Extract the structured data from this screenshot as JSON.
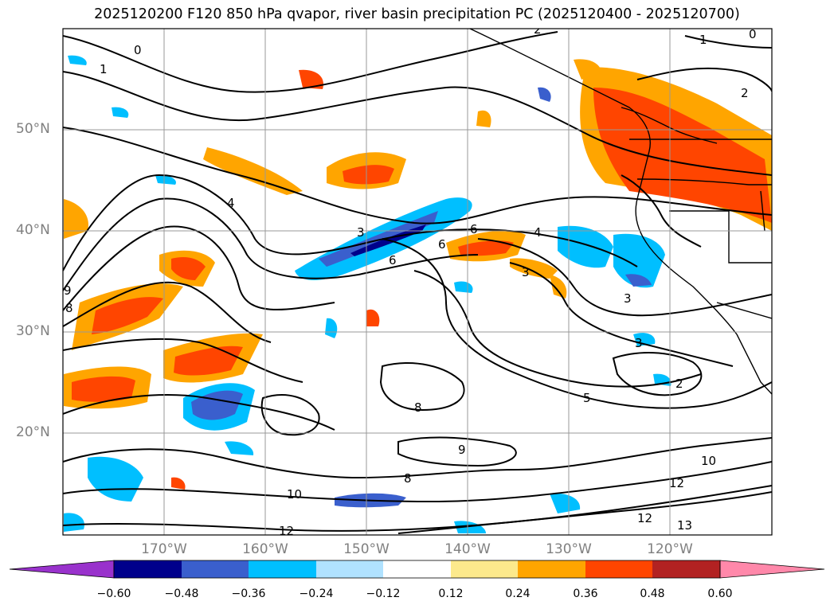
{
  "title": "2025120200 F120 850 hPa qvapor, river basin precipitation PC (2025120400 - 2025120700)",
  "map": {
    "lat_labels": [
      "50°N",
      "40°N",
      "30°N",
      "20°N"
    ],
    "lon_labels": [
      "170°W",
      "160°W",
      "150°W",
      "140°W",
      "130°W",
      "120°W"
    ],
    "contour_labels": [
      "0",
      "0",
      "1",
      "1",
      "2",
      "2",
      "2",
      "3",
      "3",
      "3",
      "3",
      "4",
      "4",
      "5",
      "6",
      "6",
      "6",
      "8",
      "8",
      "8",
      "9",
      "9",
      "10",
      "10",
      "12",
      "12",
      "12",
      "13"
    ]
  },
  "colorbar": {
    "ticks": [
      "−0.60",
      "−0.48",
      "−0.36",
      "−0.24",
      "−0.12",
      "0.12",
      "0.24",
      "0.36",
      "0.48",
      "0.60"
    ],
    "colors": [
      "#9932cc",
      "#00008b",
      "#3a5fcd",
      "#00bfff",
      "#b0e2ff",
      "#ffffff",
      "#fce98c",
      "#ffa500",
      "#ff4500",
      "#b22222",
      "#ff88aa"
    ]
  }
}
